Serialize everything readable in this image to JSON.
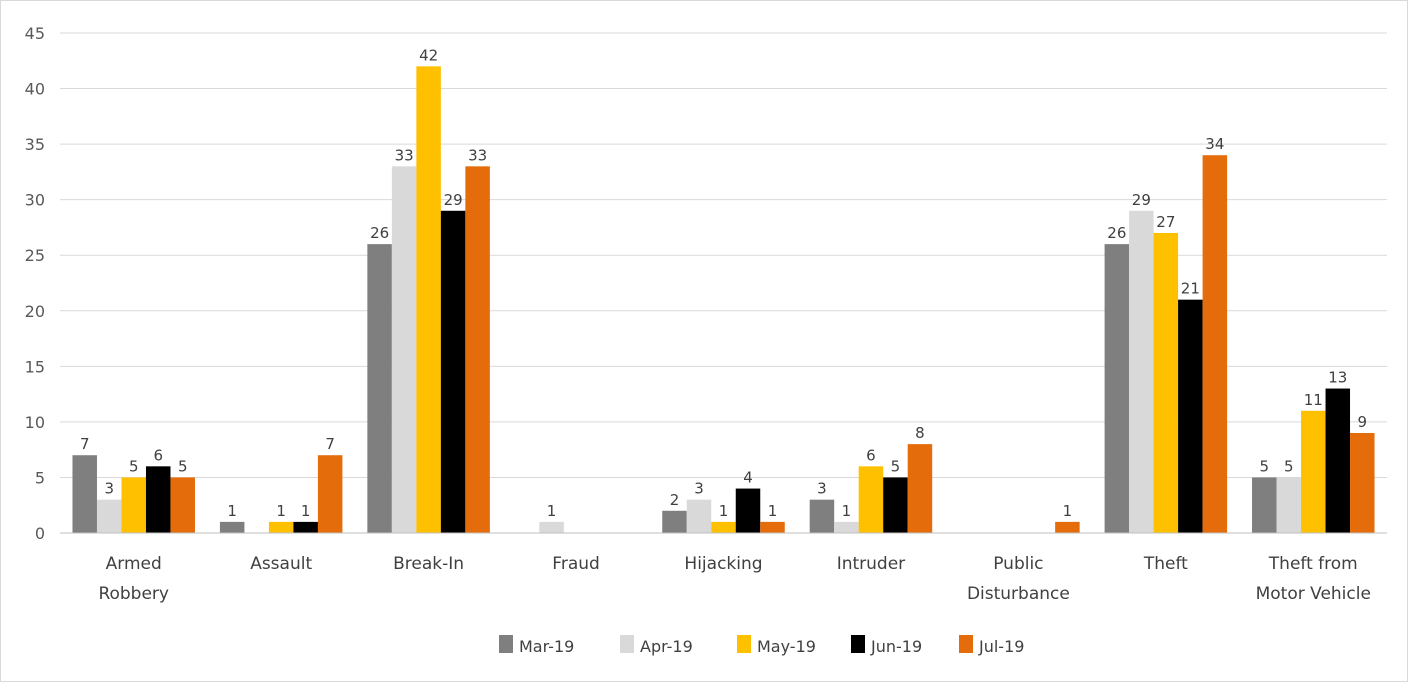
{
  "chart_data": {
    "type": "bar",
    "categories": [
      [
        "Armed",
        "Robbery"
      ],
      [
        "Assault"
      ],
      [
        "Break-In"
      ],
      [
        "Fraud"
      ],
      [
        "Hijacking"
      ],
      [
        "Intruder"
      ],
      [
        "Public",
        "Disturbance"
      ],
      [
        "Theft"
      ],
      [
        "Theft from",
        "Motor Vehicle"
      ]
    ],
    "series": [
      {
        "name": "Mar-19",
        "color": "#7f7f7f",
        "values": [
          7,
          1,
          26,
          null,
          2,
          3,
          null,
          26,
          5
        ]
      },
      {
        "name": "Apr-19",
        "color": "#d9d9d9",
        "values": [
          3,
          null,
          33,
          1,
          3,
          1,
          null,
          29,
          5
        ]
      },
      {
        "name": "May-19",
        "color": "#ffc000",
        "values": [
          5,
          1,
          42,
          null,
          1,
          6,
          null,
          27,
          11
        ]
      },
      {
        "name": "Jun-19",
        "color": "#000000",
        "values": [
          6,
          1,
          29,
          null,
          4,
          5,
          null,
          21,
          13
        ]
      },
      {
        "name": "Jul-19",
        "color": "#e46c0a",
        "values": [
          5,
          7,
          33,
          null,
          1,
          8,
          1,
          34,
          9
        ]
      }
    ],
    "ylim": [
      0,
      45
    ],
    "yticks": [
      0,
      5,
      10,
      15,
      20,
      25,
      30,
      35,
      40,
      45
    ],
    "grid": true,
    "legend_position": "bottom"
  }
}
